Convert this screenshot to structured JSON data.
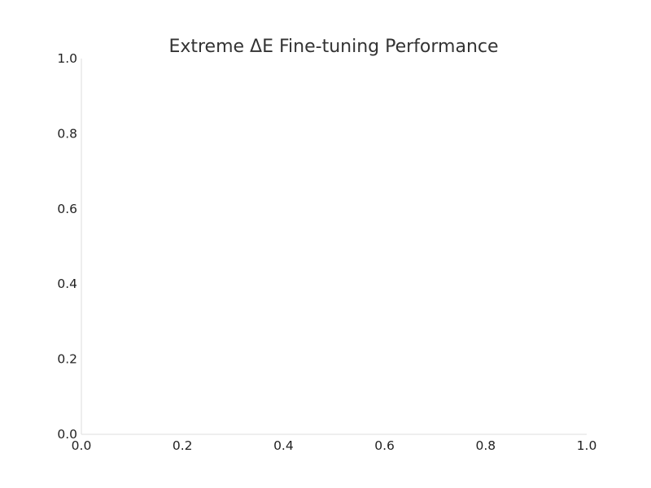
{
  "chart_data": {
    "type": "line",
    "title": "Extreme ΔE Fine-tuning Performance",
    "xlabel": "",
    "ylabel": "",
    "xlim": [
      0.0,
      1.0
    ],
    "ylim": [
      0.0,
      1.0
    ],
    "x_ticks": [
      "0.0",
      "0.2",
      "0.4",
      "0.6",
      "0.8",
      "1.0"
    ],
    "y_ticks": [
      "0.0",
      "0.2",
      "0.4",
      "0.6",
      "0.8",
      "1.0"
    ],
    "grid": false,
    "series": []
  },
  "colors": {
    "axis_line": "#dddddd",
    "title": "#333333",
    "tick_text": "#222222"
  }
}
